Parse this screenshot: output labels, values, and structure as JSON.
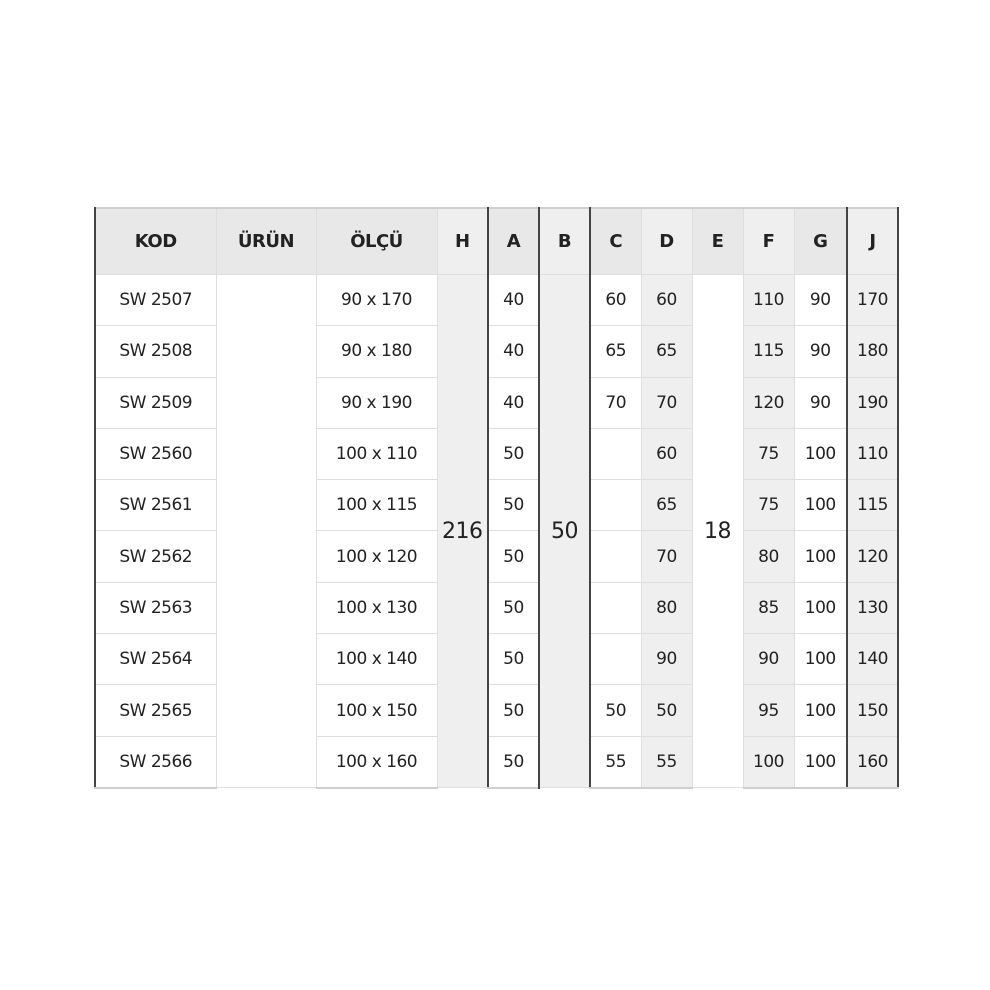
{
  "table": {
    "headers": [
      "KOD",
      "ÜRÜN",
      "ÖLÇÜ",
      "H",
      "A",
      "B",
      "C",
      "D",
      "E",
      "F",
      "G",
      "J"
    ],
    "shared": {
      "H": "216",
      "B": "50",
      "E": "18",
      "URUN": ""
    },
    "rows": [
      {
        "kod": "SW 2507",
        "olcu": "90 x 170",
        "a": "40",
        "c": "60",
        "d": "60",
        "f": "110",
        "g": "90",
        "j": "170"
      },
      {
        "kod": "SW 2508",
        "olcu": "90 x 180",
        "a": "40",
        "c": "65",
        "d": "65",
        "f": "115",
        "g": "90",
        "j": "180"
      },
      {
        "kod": "SW 2509",
        "olcu": "90 x 190",
        "a": "40",
        "c": "70",
        "d": "70",
        "f": "120",
        "g": "90",
        "j": "190"
      },
      {
        "kod": "SW 2560",
        "olcu": "100 x 110",
        "a": "50",
        "c": "",
        "d": "60",
        "f": "75",
        "g": "100",
        "j": "110"
      },
      {
        "kod": "SW 2561",
        "olcu": "100 x 115",
        "a": "50",
        "c": "",
        "d": "65",
        "f": "75",
        "g": "100",
        "j": "115"
      },
      {
        "kod": "SW 2562",
        "olcu": "100 x 120",
        "a": "50",
        "c": "",
        "d": "70",
        "f": "80",
        "g": "100",
        "j": "120"
      },
      {
        "kod": "SW 2563",
        "olcu": "100 x 130",
        "a": "50",
        "c": "",
        "d": "80",
        "f": "85",
        "g": "100",
        "j": "130"
      },
      {
        "kod": "SW 2564",
        "olcu": "100 x 140",
        "a": "50",
        "c": "",
        "d": "90",
        "f": "90",
        "g": "100",
        "j": "140"
      },
      {
        "kod": "SW 2565",
        "olcu": "100 x 150",
        "a": "50",
        "c": "50",
        "d": "50",
        "f": "95",
        "g": "100",
        "j": "150"
      },
      {
        "kod": "SW 2566",
        "olcu": "100 x 160",
        "a": "50",
        "c": "55",
        "d": "55",
        "f": "100",
        "g": "100",
        "j": "160"
      }
    ]
  }
}
